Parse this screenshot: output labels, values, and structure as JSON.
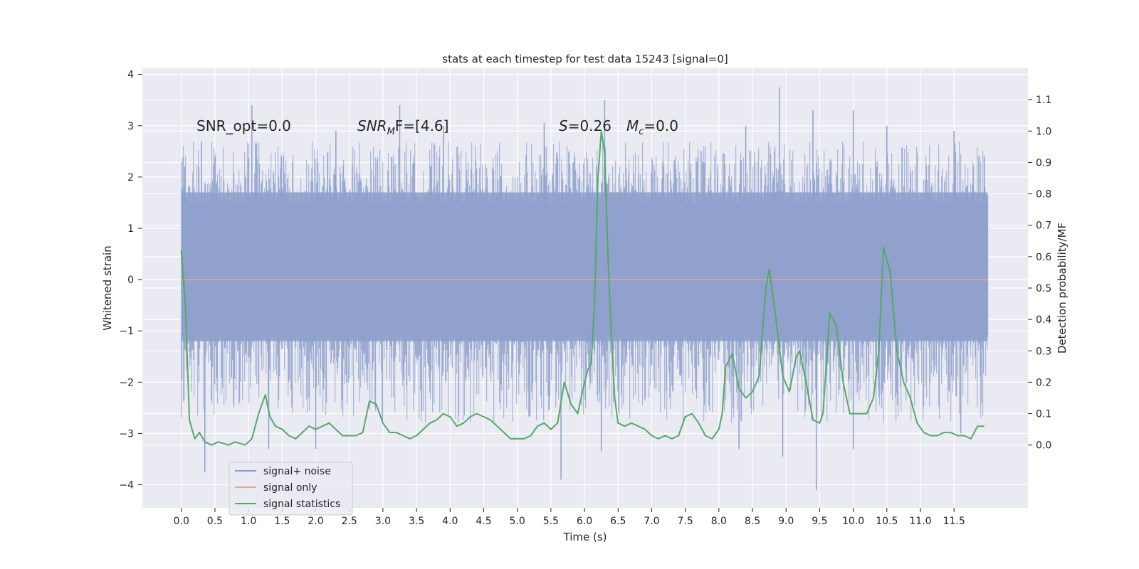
{
  "chart_data": {
    "type": "line",
    "title": "stats at each timestep for test data 15243 [signal=0]",
    "xlabel": "Time (s)",
    "ylabel_left": "Whitened strain",
    "ylabel_right": "Detection probability/MF",
    "xlim": [
      -0.58,
      12.6
    ],
    "ylim_left": [
      -4.45,
      4.12
    ],
    "ylim_right": [
      -0.2,
      1.2
    ],
    "grid": true,
    "legend_position": "lower-left",
    "x_ticks": [
      "0.0",
      "0.5",
      "1.0",
      "1.5",
      "2.0",
      "2.5",
      "3.0",
      "3.5",
      "4.0",
      "4.5",
      "5.0",
      "5.5",
      "6.0",
      "6.5",
      "7.0",
      "7.5",
      "8.0",
      "8.5",
      "9.0",
      "9.5",
      "10.0",
      "10.5",
      "11.0",
      "11.5"
    ],
    "y_ticks_left": [
      "4",
      "3",
      "2",
      "1",
      "0",
      "−1",
      "−2",
      "−3",
      "−4"
    ],
    "y_ticks_right": [
      "1.1",
      "1.0",
      "0.9",
      "0.8",
      "0.7",
      "0.6",
      "0.5",
      "0.4",
      "0.3",
      "0.2",
      "0.1",
      "0.0"
    ],
    "annotations": {
      "snr_opt": "SNR_opt=0.0",
      "snr_mf_main": "SNR",
      "snr_mf_sub": "M",
      "snr_mf_rest": "F=[4.6]",
      "s_label": "S",
      "s_value": "=0.26",
      "mc_main": "M",
      "mc_sub": "c",
      "mc_value": "=0.0"
    },
    "series": [
      {
        "name": "signal+ noise",
        "color": "#8da0cb",
        "axis": "left",
        "t_start": 0.0,
        "t_end": 12.0,
        "core_band": [
          -1.2,
          1.7
        ],
        "peaks_high": [
          [
            0.05,
            2.2
          ],
          [
            0.3,
            2.7
          ],
          [
            1.05,
            3.4
          ],
          [
            2.3,
            2.9
          ],
          [
            3.25,
            3.4
          ],
          [
            3.9,
            3.0
          ],
          [
            5.4,
            3.05
          ],
          [
            6.3,
            3.5
          ],
          [
            8.4,
            3.0
          ],
          [
            8.9,
            3.75
          ],
          [
            9.4,
            3.3
          ],
          [
            10.0,
            3.3
          ],
          [
            10.5,
            3.0
          ],
          [
            11.5,
            2.9
          ],
          [
            11.95,
            2.4
          ]
        ],
        "peaks_low": [
          [
            0.35,
            -3.75
          ],
          [
            1.3,
            -3.3
          ],
          [
            2.0,
            -3.3
          ],
          [
            5.65,
            -3.9
          ],
          [
            6.25,
            -3.35
          ],
          [
            8.3,
            -3.3
          ],
          [
            8.95,
            -3.45
          ],
          [
            9.45,
            -4.1
          ],
          [
            10.0,
            -3.3
          ],
          [
            11.6,
            -3.0
          ]
        ]
      },
      {
        "name": "signal only",
        "color": "#e5a590",
        "axis": "left",
        "x": [
          0.0,
          12.0
        ],
        "values": [
          0.0,
          0.0
        ]
      },
      {
        "name": "signal statistics",
        "color": "#55a868",
        "axis": "right",
        "x": [
          0.0,
          0.06,
          0.12,
          0.2,
          0.27,
          0.35,
          0.45,
          0.55,
          0.7,
          0.8,
          0.95,
          1.05,
          1.15,
          1.25,
          1.32,
          1.4,
          1.5,
          1.6,
          1.7,
          1.8,
          1.9,
          2.0,
          2.1,
          2.2,
          2.3,
          2.4,
          2.5,
          2.6,
          2.7,
          2.8,
          2.9,
          3.0,
          3.1,
          3.2,
          3.3,
          3.4,
          3.5,
          3.6,
          3.7,
          3.8,
          3.9,
          4.0,
          4.1,
          4.2,
          4.3,
          4.4,
          4.5,
          4.6,
          4.7,
          4.8,
          4.9,
          5.0,
          5.1,
          5.2,
          5.3,
          5.4,
          5.5,
          5.6,
          5.7,
          5.8,
          5.9,
          6.0,
          6.05,
          6.1,
          6.15,
          6.2,
          6.25,
          6.3,
          6.35,
          6.4,
          6.45,
          6.5,
          6.6,
          6.7,
          6.8,
          6.9,
          7.0,
          7.1,
          7.2,
          7.3,
          7.4,
          7.5,
          7.6,
          7.7,
          7.8,
          7.9,
          8.0,
          8.05,
          8.1,
          8.2,
          8.3,
          8.4,
          8.5,
          8.6,
          8.7,
          8.75,
          8.85,
          8.95,
          9.05,
          9.15,
          9.2,
          9.3,
          9.4,
          9.5,
          9.55,
          9.65,
          9.75,
          9.85,
          9.95,
          10.05,
          10.1,
          10.2,
          10.3,
          10.38,
          10.45,
          10.55,
          10.65,
          10.75,
          10.85,
          10.95,
          11.05,
          11.15,
          11.25,
          11.35,
          11.45,
          11.55,
          11.65,
          11.75,
          11.85,
          11.95
        ],
        "values": [
          0.62,
          0.45,
          0.08,
          0.02,
          0.04,
          0.01,
          0.0,
          0.01,
          0.0,
          0.01,
          0.0,
          0.02,
          0.1,
          0.16,
          0.09,
          0.06,
          0.05,
          0.03,
          0.02,
          0.04,
          0.06,
          0.05,
          0.06,
          0.07,
          0.05,
          0.03,
          0.03,
          0.03,
          0.04,
          0.14,
          0.13,
          0.07,
          0.04,
          0.04,
          0.03,
          0.02,
          0.03,
          0.05,
          0.07,
          0.08,
          0.1,
          0.09,
          0.06,
          0.07,
          0.09,
          0.1,
          0.09,
          0.08,
          0.06,
          0.04,
          0.02,
          0.02,
          0.02,
          0.03,
          0.06,
          0.07,
          0.05,
          0.07,
          0.2,
          0.13,
          0.1,
          0.2,
          0.24,
          0.26,
          0.45,
          0.85,
          1.0,
          0.93,
          0.6,
          0.35,
          0.15,
          0.07,
          0.06,
          0.07,
          0.06,
          0.05,
          0.03,
          0.02,
          0.03,
          0.02,
          0.03,
          0.09,
          0.1,
          0.07,
          0.03,
          0.02,
          0.05,
          0.1,
          0.25,
          0.29,
          0.18,
          0.15,
          0.17,
          0.22,
          0.5,
          0.56,
          0.4,
          0.22,
          0.17,
          0.28,
          0.3,
          0.2,
          0.08,
          0.07,
          0.1,
          0.42,
          0.38,
          0.2,
          0.1,
          0.1,
          0.1,
          0.1,
          0.15,
          0.3,
          0.63,
          0.55,
          0.3,
          0.2,
          0.15,
          0.07,
          0.04,
          0.03,
          0.03,
          0.04,
          0.04,
          0.03,
          0.03,
          0.02,
          0.06,
          0.06
        ]
      }
    ]
  }
}
